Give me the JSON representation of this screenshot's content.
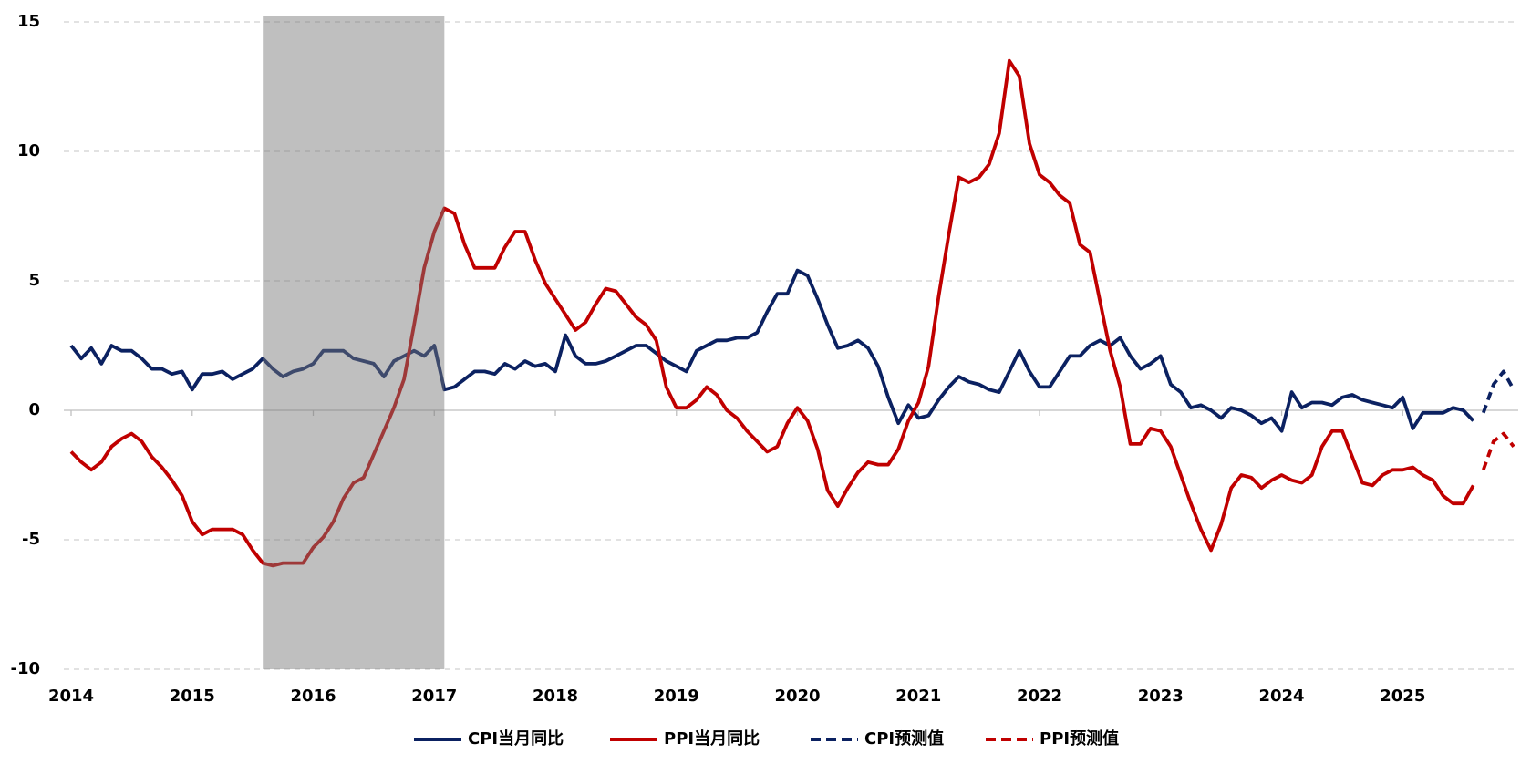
{
  "chart_data": {
    "type": "line",
    "categories": [
      "2014-01",
      "2014-02",
      "2014-03",
      "2014-04",
      "2014-05",
      "2014-06",
      "2014-07",
      "2014-08",
      "2014-09",
      "2014-10",
      "2014-11",
      "2014-12",
      "2015-01",
      "2015-02",
      "2015-03",
      "2015-04",
      "2015-05",
      "2015-06",
      "2015-07",
      "2015-08",
      "2015-09",
      "2015-10",
      "2015-11",
      "2015-12",
      "2016-01",
      "2016-02",
      "2016-03",
      "2016-04",
      "2016-05",
      "2016-06",
      "2016-07",
      "2016-08",
      "2016-09",
      "2016-10",
      "2016-11",
      "2016-12",
      "2017-01",
      "2017-02",
      "2017-03",
      "2017-04",
      "2017-05",
      "2017-06",
      "2017-07",
      "2017-08",
      "2017-09",
      "2017-10",
      "2017-11",
      "2017-12",
      "2018-01",
      "2018-02",
      "2018-03",
      "2018-04",
      "2018-05",
      "2018-06",
      "2018-07",
      "2018-08",
      "2018-09",
      "2018-10",
      "2018-11",
      "2018-12",
      "2019-01",
      "2019-02",
      "2019-03",
      "2019-04",
      "2019-05",
      "2019-06",
      "2019-07",
      "2019-08",
      "2019-09",
      "2019-10",
      "2019-11",
      "2019-12",
      "2020-01",
      "2020-02",
      "2020-03",
      "2020-04",
      "2020-05",
      "2020-06",
      "2020-07",
      "2020-08",
      "2020-09",
      "2020-10",
      "2020-11",
      "2020-12",
      "2021-01",
      "2021-02",
      "2021-03",
      "2021-04",
      "2021-05",
      "2021-06",
      "2021-07",
      "2021-08",
      "2021-09",
      "2021-10",
      "2021-11",
      "2021-12",
      "2022-01",
      "2022-02",
      "2022-03",
      "2022-04",
      "2022-05",
      "2022-06",
      "2022-07",
      "2022-08",
      "2022-09",
      "2022-10",
      "2022-11",
      "2022-12",
      "2023-01",
      "2023-02",
      "2023-03",
      "2023-04",
      "2023-05",
      "2023-06",
      "2023-07",
      "2023-08",
      "2023-09",
      "2023-10",
      "2023-11",
      "2023-12",
      "2024-01",
      "2024-02",
      "2024-03",
      "2024-04",
      "2024-05",
      "2024-06",
      "2024-07",
      "2024-08",
      "2024-09",
      "2024-10",
      "2024-11",
      "2024-12",
      "2025-01",
      "2025-02",
      "2025-03",
      "2025-04",
      "2025-05",
      "2025-06",
      "2025-07",
      "2025-08",
      "2025-09",
      "2025-10",
      "2025-11",
      "2025-12"
    ],
    "series": [
      {
        "name": "CPI当月同比",
        "color": "#0b2161",
        "dashed": false,
        "values": [
          2.5,
          2.0,
          2.4,
          1.8,
          2.5,
          2.3,
          2.3,
          2.0,
          1.6,
          1.6,
          1.4,
          1.5,
          0.8,
          1.4,
          1.4,
          1.5,
          1.2,
          1.4,
          1.6,
          2.0,
          1.6,
          1.3,
          1.5,
          1.6,
          1.8,
          2.3,
          2.3,
          2.3,
          2.0,
          1.9,
          1.8,
          1.3,
          1.9,
          2.1,
          2.3,
          2.1,
          2.5,
          0.8,
          0.9,
          1.2,
          1.5,
          1.5,
          1.4,
          1.8,
          1.6,
          1.9,
          1.7,
          1.8,
          1.5,
          2.9,
          2.1,
          1.8,
          1.8,
          1.9,
          2.1,
          2.3,
          2.5,
          2.5,
          2.2,
          1.9,
          1.7,
          1.5,
          2.3,
          2.5,
          2.7,
          2.7,
          2.8,
          2.8,
          3.0,
          3.8,
          4.5,
          4.5,
          5.4,
          5.2,
          4.3,
          3.3,
          2.4,
          2.5,
          2.7,
          2.4,
          1.7,
          0.5,
          -0.5,
          0.2,
          -0.3,
          -0.2,
          0.4,
          0.9,
          1.3,
          1.1,
          1.0,
          0.8,
          0.7,
          1.5,
          2.3,
          1.5,
          0.9,
          0.9,
          1.5,
          2.1,
          2.1,
          2.5,
          2.7,
          2.5,
          2.8,
          2.1,
          1.6,
          1.8,
          2.1,
          1.0,
          0.7,
          0.1,
          0.2,
          0.0,
          -0.3,
          0.1,
          0.0,
          -0.2,
          -0.5,
          -0.3,
          -0.8,
          0.7,
          0.1,
          0.3,
          0.3,
          0.2,
          0.5,
          0.6,
          0.4,
          0.3,
          0.2,
          0.1,
          0.5,
          -0.7,
          -0.1,
          -0.1,
          -0.1,
          0.1,
          0.0,
          -0.4,
          null,
          null,
          null,
          null
        ]
      },
      {
        "name": "PPI当月同比",
        "color": "#c00000",
        "dashed": false,
        "values": [
          -1.6,
          -2.0,
          -2.3,
          -2.0,
          -1.4,
          -1.1,
          -0.9,
          -1.2,
          -1.8,
          -2.2,
          -2.7,
          -3.3,
          -4.3,
          -4.8,
          -4.6,
          -4.6,
          -4.6,
          -4.8,
          -5.4,
          -5.9,
          -6.0,
          -5.9,
          -5.9,
          -5.9,
          -5.3,
          -4.9,
          -4.3,
          -3.4,
          -2.8,
          -2.6,
          -1.7,
          -0.8,
          0.1,
          1.2,
          3.3,
          5.5,
          6.9,
          7.8,
          7.6,
          6.4,
          5.5,
          5.5,
          5.5,
          6.3,
          6.9,
          6.9,
          5.8,
          4.9,
          4.3,
          3.7,
          3.1,
          3.4,
          4.1,
          4.7,
          4.6,
          4.1,
          3.6,
          3.3,
          2.7,
          0.9,
          0.1,
          0.1,
          0.4,
          0.9,
          0.6,
          0.0,
          -0.3,
          -0.8,
          -1.2,
          -1.6,
          -1.4,
          -0.5,
          0.1,
          -0.4,
          -1.5,
          -3.1,
          -3.7,
          -3.0,
          -2.4,
          -2.0,
          -2.1,
          -2.1,
          -1.5,
          -0.4,
          0.3,
          1.7,
          4.4,
          6.8,
          9.0,
          8.8,
          9.0,
          9.5,
          10.7,
          13.5,
          12.9,
          10.3,
          9.1,
          8.8,
          8.3,
          8.0,
          6.4,
          6.1,
          4.2,
          2.3,
          0.9,
          -1.3,
          -1.3,
          -0.7,
          -0.8,
          -1.4,
          -2.5,
          -3.6,
          -4.6,
          -5.4,
          -4.4,
          -3.0,
          -2.5,
          -2.6,
          -3.0,
          -2.7,
          -2.5,
          -2.7,
          -2.8,
          -2.5,
          -1.4,
          -0.8,
          -0.8,
          -1.8,
          -2.8,
          -2.9,
          -2.5,
          -2.3,
          -2.3,
          -2.2,
          -2.5,
          -2.7,
          -3.3,
          -3.6,
          -3.6,
          -2.9,
          null,
          null,
          null,
          null
        ]
      },
      {
        "name": "CPI预测值",
        "color": "#0b2161",
        "dashed": true,
        "values": [
          null,
          null,
          null,
          null,
          null,
          null,
          null,
          null,
          null,
          null,
          null,
          null,
          null,
          null,
          null,
          null,
          null,
          null,
          null,
          null,
          null,
          null,
          null,
          null,
          null,
          null,
          null,
          null,
          null,
          null,
          null,
          null,
          null,
          null,
          null,
          null,
          null,
          null,
          null,
          null,
          null,
          null,
          null,
          null,
          null,
          null,
          null,
          null,
          null,
          null,
          null,
          null,
          null,
          null,
          null,
          null,
          null,
          null,
          null,
          null,
          null,
          null,
          null,
          null,
          null,
          null,
          null,
          null,
          null,
          null,
          null,
          null,
          null,
          null,
          null,
          null,
          null,
          null,
          null,
          null,
          null,
          null,
          null,
          null,
          null,
          null,
          null,
          null,
          null,
          null,
          null,
          null,
          null,
          null,
          null,
          null,
          null,
          null,
          null,
          null,
          null,
          null,
          null,
          null,
          null,
          null,
          null,
          null,
          null,
          null,
          null,
          null,
          null,
          null,
          null,
          null,
          null,
          null,
          null,
          null,
          null,
          null,
          null,
          null,
          null,
          null,
          null,
          null,
          null,
          null,
          null,
          null,
          null,
          null,
          null,
          null,
          null,
          null,
          null,
          null,
          -0.1,
          1.0,
          1.5,
          0.8
        ]
      },
      {
        "name": "PPI预测值",
        "color": "#c00000",
        "dashed": true,
        "values": [
          null,
          null,
          null,
          null,
          null,
          null,
          null,
          null,
          null,
          null,
          null,
          null,
          null,
          null,
          null,
          null,
          null,
          null,
          null,
          null,
          null,
          null,
          null,
          null,
          null,
          null,
          null,
          null,
          null,
          null,
          null,
          null,
          null,
          null,
          null,
          null,
          null,
          null,
          null,
          null,
          null,
          null,
          null,
          null,
          null,
          null,
          null,
          null,
          null,
          null,
          null,
          null,
          null,
          null,
          null,
          null,
          null,
          null,
          null,
          null,
          null,
          null,
          null,
          null,
          null,
          null,
          null,
          null,
          null,
          null,
          null,
          null,
          null,
          null,
          null,
          null,
          null,
          null,
          null,
          null,
          null,
          null,
          null,
          null,
          null,
          null,
          null,
          null,
          null,
          null,
          null,
          null,
          null,
          null,
          null,
          null,
          null,
          null,
          null,
          null,
          null,
          null,
          null,
          null,
          null,
          null,
          null,
          null,
          null,
          null,
          null,
          null,
          null,
          null,
          null,
          null,
          null,
          null,
          null,
          null,
          null,
          null,
          null,
          null,
          null,
          null,
          null,
          null,
          null,
          null,
          null,
          null,
          null,
          null,
          null,
          null,
          null,
          null,
          null,
          null,
          -2.3,
          -1.2,
          -0.9,
          -1.4
        ]
      }
    ],
    "xticks": [
      {
        "value": "2014-01",
        "label": "2014"
      },
      {
        "value": "2015-01",
        "label": "2015"
      },
      {
        "value": "2016-01",
        "label": "2016"
      },
      {
        "value": "2017-01",
        "label": "2017"
      },
      {
        "value": "2018-01",
        "label": "2018"
      },
      {
        "value": "2019-01",
        "label": "2019"
      },
      {
        "value": "2020-01",
        "label": "2020"
      },
      {
        "value": "2021-01",
        "label": "2021"
      },
      {
        "value": "2022-01",
        "label": "2022"
      },
      {
        "value": "2023-01",
        "label": "2023"
      },
      {
        "value": "2024-01",
        "label": "2024"
      },
      {
        "value": "2025-01",
        "label": "2025"
      }
    ],
    "ylim": [
      -10,
      15
    ],
    "yticks": [
      -10,
      -5,
      0,
      5,
      10,
      15
    ],
    "grid": true,
    "shaded_range": [
      "2015-08",
      "2017-02"
    ],
    "shade_color": "#bfbfbf",
    "legend": "bottom"
  }
}
